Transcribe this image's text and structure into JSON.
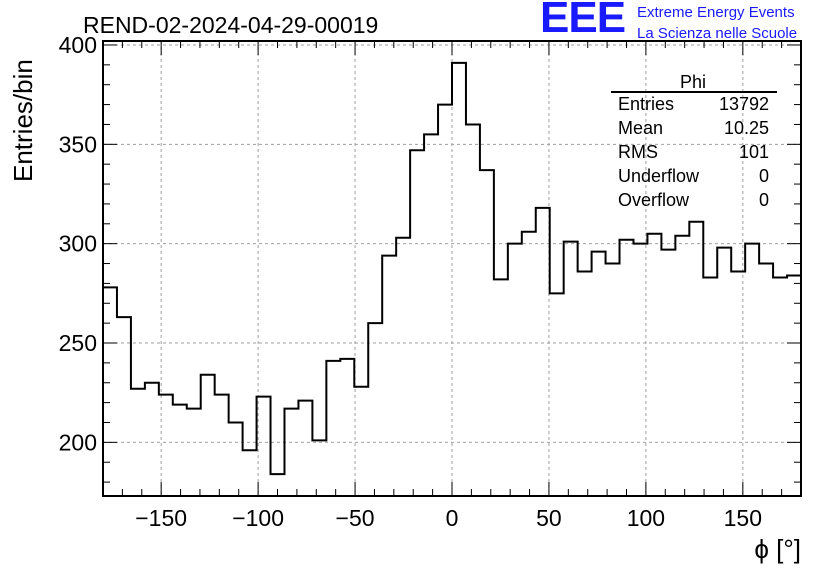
{
  "chart_data": {
    "type": "histogram",
    "title": "REND-02-2024-04-29-00019",
    "xlabel": "ϕ [°]",
    "ylabel": "Entries/bin",
    "xlim": [
      -180,
      180
    ],
    "ylim": [
      173,
      402
    ],
    "grid": true,
    "x_ticks": [
      -150,
      -100,
      -50,
      0,
      50,
      100,
      150
    ],
    "x_tick_labels": [
      "−150",
      "−100",
      "−50",
      "0",
      "50",
      "100",
      "150"
    ],
    "y_ticks": [
      200,
      250,
      300,
      350,
      400
    ],
    "y_tick_labels": [
      "200",
      "250",
      "300",
      "350",
      "400"
    ],
    "bin_width": 7.2,
    "bin_edges_start": -180,
    "values": [
      278,
      263,
      227,
      230,
      224,
      219,
      217,
      234,
      224,
      210,
      196,
      223,
      184,
      217,
      221,
      201,
      241,
      242,
      228,
      260,
      294,
      303,
      347,
      355,
      370,
      391,
      360,
      337,
      282,
      300,
      306,
      318,
      275,
      301,
      286,
      296,
      290,
      302,
      300,
      305,
      297,
      304,
      311,
      283,
      298,
      286,
      300,
      290,
      283,
      284
    ],
    "stats_box": {
      "title": "Phi",
      "rows": [
        {
          "label": "Entries",
          "value": "13792"
        },
        {
          "label": "Mean",
          "value": "10.25"
        },
        {
          "label": "RMS",
          "value": "101"
        },
        {
          "label": "Underflow",
          "value": "0"
        },
        {
          "label": "Overflow",
          "value": "0"
        }
      ]
    }
  },
  "logo": {
    "letters": "EEE",
    "line1": "Extreme Energy Events",
    "line2": "La Scienza nelle Scuole",
    "color": "#1a1aff"
  }
}
